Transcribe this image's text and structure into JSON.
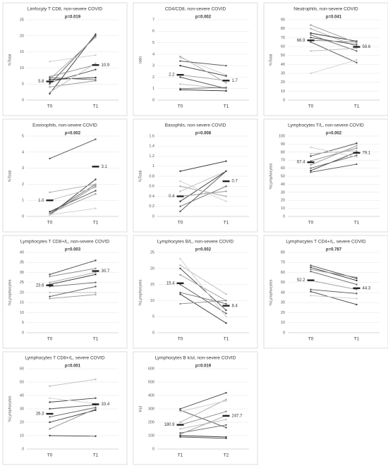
{
  "chart_data": [
    {
      "type": "line",
      "title": "Limfocyty T CD8, non-severe COVID",
      "annotation": "p=0.019",
      "y_label": "%Total",
      "categories": [
        "T0",
        "T1"
      ],
      "ylim": [
        0,
        25
      ],
      "yticks": [
        0,
        5,
        10,
        15,
        20,
        25
      ],
      "grid": true,
      "series": [
        {
          "color": "#555",
          "values": [
            5,
            20
          ]
        },
        {
          "color": "#333",
          "values": [
            2,
            20.5
          ]
        },
        {
          "color": "#aaa",
          "values": [
            6.5,
            19.5
          ]
        },
        {
          "color": "#ccc",
          "values": [
            12,
            14
          ]
        },
        {
          "color": "#888",
          "values": [
            7.3,
            11
          ]
        },
        {
          "color": "#444",
          "values": [
            5.5,
            9.5
          ]
        },
        {
          "color": "#222",
          "values": [
            6.4,
            7
          ]
        },
        {
          "color": "#999",
          "values": [
            4.1,
            6
          ]
        },
        {
          "color": "#666",
          "values": [
            7,
            6.3
          ]
        },
        {
          "color": "#bbb",
          "values": [
            2.4,
            11.5
          ]
        }
      ],
      "medians": {
        "values": [
          5.8,
          10.9
        ]
      }
    },
    {
      "type": "line",
      "title": "CD4/CD8, non-severe COVID",
      "annotation": "p=0.002",
      "y_label": "ratio",
      "categories": [
        "T0",
        "T1"
      ],
      "ylim": [
        0,
        7
      ],
      "yticks": [
        0,
        1,
        2,
        3,
        4,
        5,
        6,
        7
      ],
      "grid": true,
      "series": [
        {
          "color": "#ccc",
          "values": [
            3.7,
            2.2
          ]
        },
        {
          "color": "#555",
          "values": [
            3.4,
            3
          ]
        },
        {
          "color": "#333",
          "values": [
            3,
            2.1
          ]
        },
        {
          "color": "#999",
          "values": [
            2.2,
            1.7
          ]
        },
        {
          "color": "#444",
          "values": [
            2,
            1
          ]
        },
        {
          "color": "#bbb",
          "values": [
            1.4,
            1
          ]
        },
        {
          "color": "#666",
          "values": [
            1,
            1.1
          ]
        },
        {
          "color": "#222",
          "values": [
            0.9,
            0.8
          ]
        },
        {
          "color": "#aaa",
          "values": [
            3.8,
            1.5
          ]
        }
      ],
      "medians": {
        "values": [
          2.2,
          1.7
        ]
      }
    },
    {
      "type": "line",
      "title": "Neutrophils, non-severe COVID",
      "annotation": "p=0.041",
      "y_label": "%Total",
      "categories": [
        "T0",
        "T1"
      ],
      "ylim": [
        0,
        90
      ],
      "yticks": [
        0,
        10,
        20,
        30,
        40,
        50,
        60,
        70,
        80,
        90
      ],
      "grid": true,
      "series": [
        {
          "color": "#aaa",
          "values": [
            80,
            60
          ]
        },
        {
          "color": "#333",
          "values": [
            75,
            66
          ]
        },
        {
          "color": "#666",
          "values": [
            73,
            55
          ]
        },
        {
          "color": "#444",
          "values": [
            70,
            62
          ]
        },
        {
          "color": "#888",
          "values": [
            67,
            65
          ]
        },
        {
          "color": "#555",
          "values": [
            65,
            42
          ]
        },
        {
          "color": "#bbb",
          "values": [
            55,
            58
          ]
        },
        {
          "color": "#ccc",
          "values": [
            30,
            45
          ]
        },
        {
          "color": "#999",
          "values": [
            84,
            64
          ]
        }
      ],
      "medians": {
        "values": [
          66.9,
          59.6
        ]
      }
    },
    {
      "type": "line",
      "title": "Eosinophils, non-severe COVID",
      "annotation": "p=0.002",
      "y_label": "%Total",
      "categories": [
        "T0",
        "T1"
      ],
      "ylim": [
        0,
        5
      ],
      "yticks": [
        0,
        1,
        2,
        3,
        4,
        5
      ],
      "grid": true,
      "series": [
        {
          "color": "#555",
          "values": [
            3.6,
            4.8
          ]
        },
        {
          "color": "#333",
          "values": [
            0.1,
            2.3
          ]
        },
        {
          "color": "#666",
          "values": [
            0.2,
            2
          ]
        },
        {
          "color": "#888",
          "values": [
            0.1,
            1.9
          ]
        },
        {
          "color": "#444",
          "values": [
            0.3,
            1.6
          ]
        },
        {
          "color": "#bbb",
          "values": [
            1,
            1.8
          ]
        },
        {
          "color": "#999",
          "values": [
            0.2,
            1.4
          ]
        },
        {
          "color": "#ccc",
          "values": [
            0.1,
            0.5
          ]
        },
        {
          "color": "#aaa",
          "values": [
            1.5,
            2
          ]
        }
      ],
      "medians": {
        "values": [
          1,
          3.1
        ],
        "value_labels": [
          "1.0",
          "3.1"
        ]
      }
    },
    {
      "type": "line",
      "title": "Basophils, non-severe COVID",
      "annotation": "p=0.008",
      "y_label": "%Total",
      "categories": [
        "T0",
        "T1"
      ],
      "ylim": [
        0,
        1.6
      ],
      "yticks": [
        0,
        0.2,
        0.4,
        0.6,
        0.8,
        1,
        1.2,
        1.4,
        1.6
      ],
      "grid": true,
      "series": [
        {
          "color": "#444",
          "values": [
            0.9,
            1.1
          ]
        },
        {
          "color": "#bbb",
          "values": [
            0.5,
            0.9
          ]
        },
        {
          "color": "#333",
          "values": [
            0.3,
            0.9
          ]
        },
        {
          "color": "#aaa",
          "values": [
            0.6,
            0.4
          ]
        },
        {
          "color": "#666",
          "values": [
            0.2,
            0.6
          ]
        },
        {
          "color": "#999",
          "values": [
            0.4,
            0.5
          ]
        },
        {
          "color": "#555",
          "values": [
            0.1,
            0.9
          ]
        },
        {
          "color": "#ccc",
          "values": [
            0.7,
            0.3
          ]
        }
      ],
      "medians": {
        "values": [
          0.4,
          0.7
        ]
      }
    },
    {
      "type": "line",
      "title": "Lymphocytes T/L, non-severe COVID",
      "annotation": "p=0.002",
      "y_label": "%Lymphocytes",
      "categories": [
        "T0",
        "T1"
      ],
      "ylim": [
        0,
        100
      ],
      "yticks": [
        0,
        10,
        20,
        30,
        40,
        50,
        60,
        70,
        80,
        90,
        100
      ],
      "grid": true,
      "series": [
        {
          "color": "#444",
          "values": [
            75,
            91
          ]
        },
        {
          "color": "#333",
          "values": [
            57,
            80
          ]
        },
        {
          "color": "#888",
          "values": [
            69,
            85
          ]
        },
        {
          "color": "#666",
          "values": [
            60,
            76
          ]
        },
        {
          "color": "#555",
          "values": [
            55,
            65
          ]
        },
        {
          "color": "#bbb",
          "values": [
            78,
            82
          ]
        },
        {
          "color": "#ccc",
          "values": [
            86,
            74
          ]
        },
        {
          "color": "#999",
          "values": [
            64,
            88
          ]
        }
      ],
      "medians": {
        "values": [
          67.4,
          79.1
        ]
      }
    },
    {
      "type": "line",
      "title": "Lymphocytes T CD8+/L, non-severe COVID",
      "annotation": "p=0.003",
      "y_label": "%Lymphocytes",
      "categories": [
        "T0",
        "T1"
      ],
      "ylim": [
        0,
        40
      ],
      "yticks": [
        0,
        5,
        10,
        15,
        20,
        25,
        30,
        35,
        40
      ],
      "grid": true,
      "series": [
        {
          "color": "#444",
          "values": [
            29,
            36
          ]
        },
        {
          "color": "#aaa",
          "values": [
            25,
            30
          ]
        },
        {
          "color": "#333",
          "values": [
            24,
            29
          ]
        },
        {
          "color": "#666",
          "values": [
            23,
            25
          ]
        },
        {
          "color": "#bbb",
          "values": [
            20,
            20
          ]
        },
        {
          "color": "#555",
          "values": [
            18,
            23
          ]
        },
        {
          "color": "#999",
          "values": [
            17,
            19
          ]
        },
        {
          "color": "#888",
          "values": [
            28,
            32
          ]
        }
      ],
      "medians": {
        "values": [
          23.6,
          30.7
        ]
      }
    },
    {
      "type": "line",
      "title": "Lymphocytes B/L, non-severe COVID",
      "annotation": "p=0.002",
      "y_label": "%Lymphocytes",
      "categories": [
        "T0",
        "T1"
      ],
      "ylim": [
        0,
        25
      ],
      "yticks": [
        0,
        5,
        10,
        15,
        20,
        25
      ],
      "grid": true,
      "series": [
        {
          "color": "#bbb",
          "values": [
            21,
            12
          ]
        },
        {
          "color": "#444",
          "values": [
            20,
            7
          ]
        },
        {
          "color": "#999",
          "values": [
            18,
            10
          ]
        },
        {
          "color": "#555",
          "values": [
            15,
            6
          ]
        },
        {
          "color": "#666",
          "values": [
            12.5,
            9
          ]
        },
        {
          "color": "#333",
          "values": [
            12,
            3
          ]
        },
        {
          "color": "#888",
          "values": [
            9,
            10
          ]
        },
        {
          "color": "#ccc",
          "values": [
            23,
            5
          ]
        }
      ],
      "medians": {
        "values": [
          15.4,
          8.4
        ]
      }
    },
    {
      "type": "line",
      "title": "Lymphocytes T CD4+/L, severe COVID",
      "annotation": "p=0.787",
      "y_label": "%Lymphocytes",
      "categories": [
        "T0",
        "T1"
      ],
      "ylim": [
        0,
        80
      ],
      "yticks": [
        0,
        10,
        20,
        30,
        40,
        50,
        60,
        70,
        80
      ],
      "grid": true,
      "series": [
        {
          "color": "#444",
          "values": [
            67,
            54
          ]
        },
        {
          "color": "#333",
          "values": [
            65,
            52
          ]
        },
        {
          "color": "#666",
          "values": [
            61,
            48
          ]
        },
        {
          "color": "#999",
          "values": [
            52,
            43
          ]
        },
        {
          "color": "#555",
          "values": [
            43,
            39
          ]
        },
        {
          "color": "#444",
          "values": [
            41,
            28
          ]
        },
        {
          "color": "#ccc",
          "values": [
            37,
            34
          ]
        },
        {
          "color": "#888",
          "values": [
            63,
            55
          ]
        }
      ],
      "medians": {
        "values": [
          52.2,
          44.3
        ]
      }
    },
    {
      "type": "line",
      "title": "Lymphocytes T CD8+/L, severe COVID",
      "annotation": "p=0.001",
      "y_label": "%Lymphocytes",
      "categories": [
        "T0",
        "T1"
      ],
      "ylim": [
        0,
        60
      ],
      "yticks": [
        0,
        10,
        20,
        30,
        40,
        50,
        60
      ],
      "grid": true,
      "series": [
        {
          "color": "#bbb",
          "values": [
            47,
            52
          ]
        },
        {
          "color": "#444",
          "values": [
            35,
            38
          ]
        },
        {
          "color": "#555",
          "values": [
            30,
            33
          ]
        },
        {
          "color": "#666",
          "values": [
            24,
            31
          ]
        },
        {
          "color": "#333",
          "values": [
            20,
            29
          ]
        },
        {
          "color": "#888",
          "values": [
            15,
            30
          ]
        },
        {
          "color": "#444",
          "values": [
            10,
            9.6
          ]
        },
        {
          "color": "#ccc",
          "values": [
            38,
            34
          ]
        }
      ],
      "medians": {
        "values": [
          26.3,
          33.4
        ]
      }
    },
    {
      "type": "line",
      "title": "Lymphocytes B k/ul, non-severe COVID",
      "annotation": "p=0.019",
      "y_label": "k/µl",
      "categories": [
        "T1",
        "T2"
      ],
      "ylim": [
        0,
        600
      ],
      "yticks": [
        0,
        100,
        200,
        300,
        400,
        500,
        600
      ],
      "grid": true,
      "series": [
        {
          "color": "#444",
          "values": [
            300,
            420
          ]
        },
        {
          "color": "#555",
          "values": [
            290,
            160
          ]
        },
        {
          "color": "#aaa",
          "values": [
            200,
            370
          ]
        },
        {
          "color": "#888",
          "values": [
            180,
            280
          ]
        },
        {
          "color": "#bbb",
          "values": [
            150,
            220
          ]
        },
        {
          "color": "#666",
          "values": [
            120,
            180
          ]
        },
        {
          "color": "#333",
          "values": [
            100,
            90
          ]
        },
        {
          "color": "#444",
          "values": [
            90,
            80
          ]
        },
        {
          "color": "#ccc",
          "values": [
            280,
            360
          ]
        },
        {
          "color": "#999",
          "values": [
            110,
            250
          ]
        }
      ],
      "medians": {
        "values": [
          180.9,
          247.7
        ]
      }
    }
  ]
}
